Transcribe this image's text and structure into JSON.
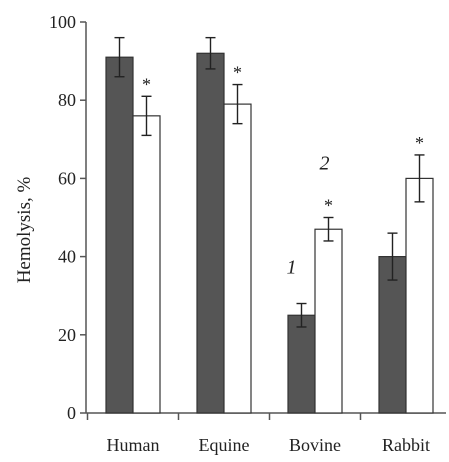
{
  "chart_data": {
    "type": "bar",
    "title": "",
    "xlabel": "",
    "ylabel": "Hemolysis, %",
    "ylim": [
      0,
      100
    ],
    "yticks": [
      0,
      20,
      40,
      60,
      80,
      100
    ],
    "grid": false,
    "legend": "none",
    "categories": [
      "Human",
      "Equine",
      "Bovine",
      "Rabbit"
    ],
    "series": [
      {
        "label_mark": "1",
        "color": "#555555",
        "values": [
          91,
          92,
          25,
          40
        ],
        "errors": [
          5,
          4,
          3,
          6
        ],
        "significance": [
          "",
          "",
          "",
          ""
        ]
      },
      {
        "label_mark": "2",
        "color": "#ffffff",
        "values": [
          76,
          79,
          47,
          60
        ],
        "errors": [
          5,
          5,
          3,
          6
        ],
        "significance": [
          "*",
          "*",
          "*",
          "*"
        ]
      }
    ],
    "series_label_category": "Bovine"
  }
}
